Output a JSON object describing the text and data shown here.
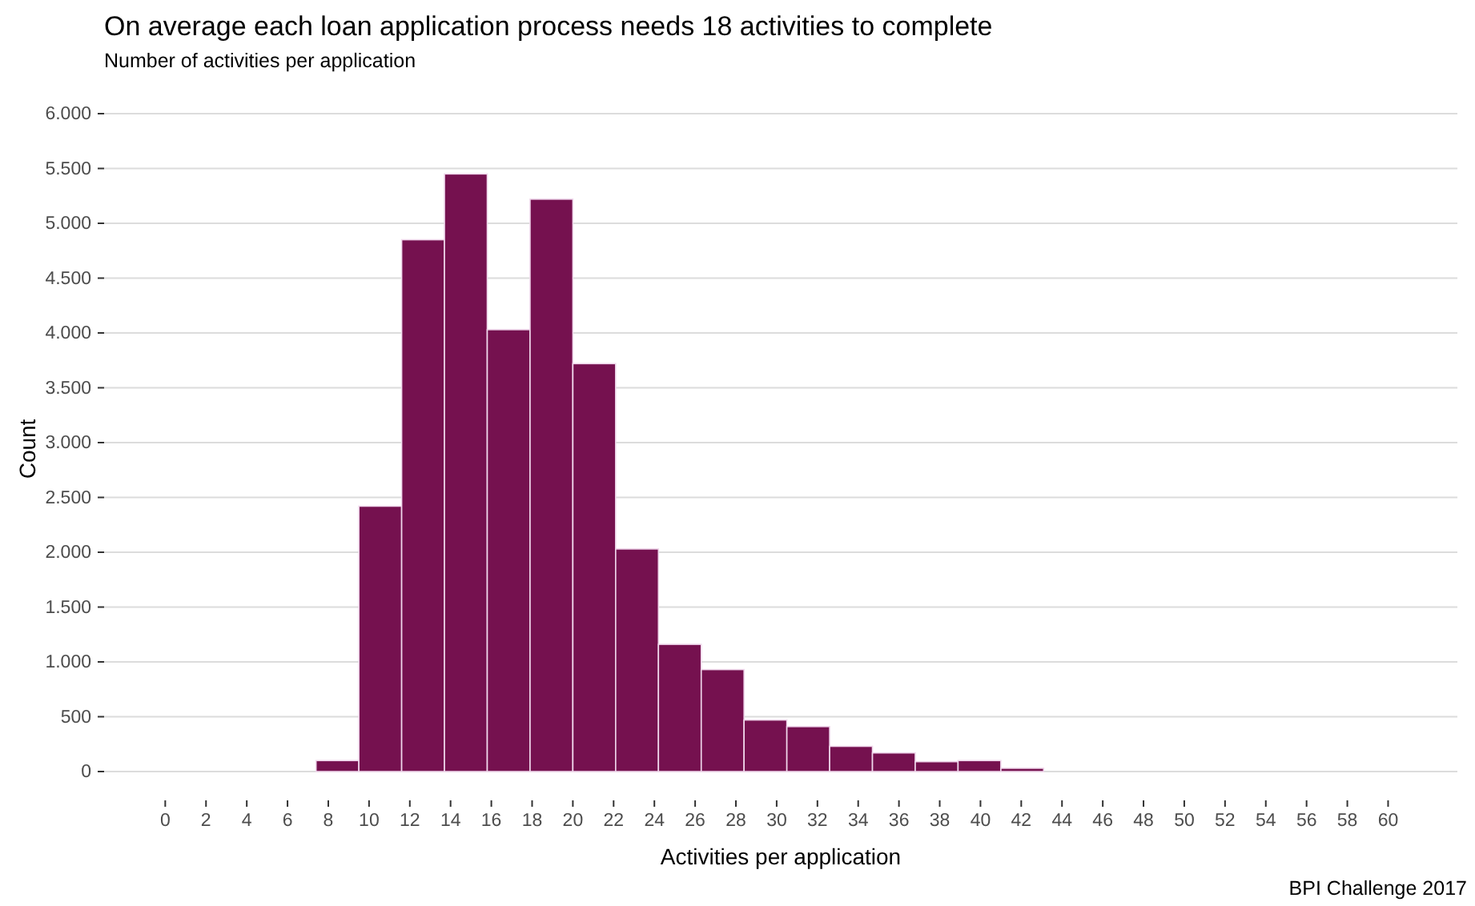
{
  "chart_data": {
    "type": "histogram",
    "title": "On average each loan application process needs 18 activities to complete",
    "subtitle": "Number of activities per application",
    "xlabel": "Activities per application",
    "ylabel": "Count",
    "annotations": [
      "BPI Challenge 2017"
    ],
    "bins": [
      1.1,
      3.2,
      5.3,
      7.4,
      9.5,
      11.6,
      13.7,
      15.8,
      17.9,
      20.0,
      22.1,
      24.2,
      26.3,
      28.4,
      30.5,
      32.6,
      34.7,
      36.8,
      38.9,
      41.0,
      43.1,
      45.2,
      47.3
    ],
    "values": [
      0,
      0,
      0,
      100,
      2420,
      4850,
      5450,
      4030,
      5220,
      3720,
      2030,
      1160,
      930,
      470,
      410,
      230,
      170,
      90,
      100,
      30,
      0,
      0
    ],
    "color": "#75114f",
    "xlim": [
      -3,
      63.4
    ],
    "xticks": [
      0,
      2,
      4,
      6,
      8,
      10,
      12,
      14,
      16,
      18,
      20,
      22,
      24,
      26,
      28,
      30,
      32,
      34,
      36,
      38,
      40,
      42,
      44,
      46,
      48,
      50,
      52,
      54,
      56,
      58,
      60
    ],
    "ylim": [
      0,
      6000
    ],
    "yticks": [
      {
        "value": 0,
        "label": "0"
      },
      {
        "value": 500,
        "label": "500"
      },
      {
        "value": 1000,
        "label": "1.000"
      },
      {
        "value": 1500,
        "label": "1.500"
      },
      {
        "value": 2000,
        "label": "2.000"
      },
      {
        "value": 2500,
        "label": "2.500"
      },
      {
        "value": 3000,
        "label": "3.000"
      },
      {
        "value": 3500,
        "label": "3.500"
      },
      {
        "value": 4000,
        "label": "4.000"
      },
      {
        "value": 4500,
        "label": "4.500"
      },
      {
        "value": 5000,
        "label": "5.000"
      },
      {
        "value": 5500,
        "label": "5.500"
      },
      {
        "value": 6000,
        "label": "6.000"
      }
    ],
    "grid": "y"
  }
}
